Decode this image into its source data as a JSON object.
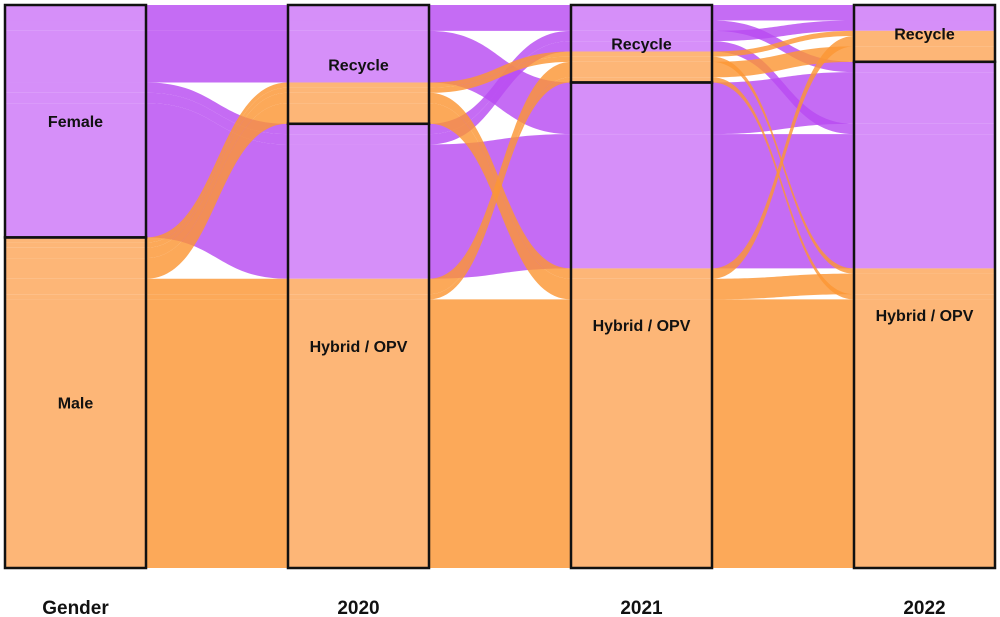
{
  "chart_data": {
    "type": "alluvial",
    "axes": [
      "Gender",
      "2020",
      "2021",
      "2022"
    ],
    "colors": {
      "Female": "#b84cf2",
      "Male": "#fb9635",
      "Female_light": "#d68ff9",
      "Male_light": "#fdb677"
    },
    "strata": {
      "Gender": [
        "Female",
        "Male"
      ],
      "2020": [
        "Recycle",
        "Hybrid / OPV"
      ],
      "2021": [
        "Recycle",
        "Hybrid / OPV"
      ],
      "2022": [
        "Recycle",
        "Hybrid / OPV"
      ]
    },
    "flows": [
      {
        "gender": "Female",
        "path": [
          "Recycle",
          "Recycle",
          "Recycle"
        ],
        "value": 3
      },
      {
        "gender": "Female",
        "path": [
          "Recycle",
          "Recycle",
          "Hybrid / OPV"
        ],
        "value": 2
      },
      {
        "gender": "Female",
        "path": [
          "Recycle",
          "Hybrid / OPV",
          "Hybrid / OPV"
        ],
        "value": 10
      },
      {
        "gender": "Female",
        "path": [
          "Hybrid / OPV",
          "Recycle",
          "Recycle"
        ],
        "value": 2
      },
      {
        "gender": "Female",
        "path": [
          "Hybrid / OPV",
          "Recycle",
          "Hybrid / OPV"
        ],
        "value": 2
      },
      {
        "gender": "Female",
        "path": [
          "Hybrid / OPV",
          "Hybrid / OPV",
          "Hybrid / OPV"
        ],
        "value": 26
      },
      {
        "gender": "Male",
        "path": [
          "Recycle",
          "Recycle",
          "Recycle"
        ],
        "value": 1
      },
      {
        "gender": "Male",
        "path": [
          "Recycle",
          "Recycle",
          "Hybrid / OPV"
        ],
        "value": 1
      },
      {
        "gender": "Male",
        "path": [
          "Recycle",
          "Hybrid / OPV",
          "Recycle"
        ],
        "value": 2
      },
      {
        "gender": "Male",
        "path": [
          "Recycle",
          "Hybrid / OPV",
          "Hybrid / OPV"
        ],
        "value": 4
      },
      {
        "gender": "Male",
        "path": [
          "Hybrid / OPV",
          "Recycle",
          "Recycle"
        ],
        "value": 3
      },
      {
        "gender": "Male",
        "path": [
          "Hybrid / OPV",
          "Recycle",
          "Hybrid / OPV"
        ],
        "value": 1
      },
      {
        "gender": "Male",
        "path": [
          "Hybrid / OPV",
          "Hybrid / OPV",
          "Hybrid / OPV"
        ],
        "value": 52
      }
    ]
  }
}
